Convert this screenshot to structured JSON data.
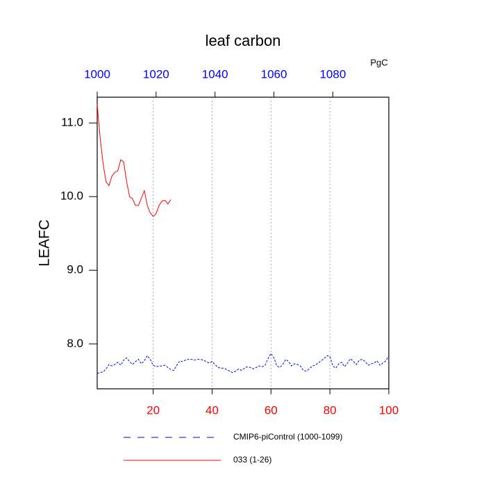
{
  "chart_data": {
    "type": "line",
    "title": "leaf carbon",
    "y_label": "LEAFC",
    "unit_label": "PgC",
    "xlim": [
      1,
      100
    ],
    "xticks": [
      20,
      40,
      60,
      80,
      100
    ],
    "xtick_color": "#ff0000",
    "x2lim": [
      1000,
      1099
    ],
    "x2ticks": [
      1000,
      1020,
      1040,
      1060,
      1080
    ],
    "x2tick_color": "#0000ff",
    "ylim": [
      7.39,
      11.35
    ],
    "yticks": [
      {
        "value": 8,
        "label": "8.0"
      },
      {
        "value": 9,
        "label": "9.0"
      },
      {
        "value": 10,
        "label": "10.0"
      },
      {
        "value": 11,
        "label": "11.0"
      }
    ],
    "grid": true,
    "series": [
      {
        "name": "CMIP6-piControl (1000-1099)",
        "color": "#0000ff",
        "dash": true,
        "x": [
          1,
          2,
          3,
          4,
          5,
          6,
          7,
          8,
          9,
          10,
          11,
          12,
          13,
          14,
          15,
          16,
          17,
          18,
          19,
          20,
          21,
          22,
          23,
          24,
          25,
          26,
          27,
          28,
          29,
          30,
          31,
          32,
          33,
          34,
          35,
          36,
          37,
          38,
          39,
          40,
          41,
          42,
          43,
          44,
          45,
          46,
          47,
          48,
          49,
          50,
          51,
          52,
          53,
          54,
          55,
          56,
          57,
          58,
          59,
          60,
          61,
          62,
          63,
          64,
          65,
          66,
          67,
          68,
          69,
          70,
          71,
          72,
          73,
          74,
          75,
          76,
          77,
          78,
          79,
          80,
          81,
          82,
          83,
          84,
          85,
          86,
          87,
          88,
          89,
          90,
          91,
          92,
          93,
          94,
          95,
          96,
          97,
          98,
          99,
          100
        ],
        "values": [
          7.6,
          7.61,
          7.62,
          7.66,
          7.72,
          7.7,
          7.72,
          7.75,
          7.71,
          7.78,
          7.81,
          7.76,
          7.72,
          7.76,
          7.79,
          7.73,
          7.77,
          7.84,
          7.79,
          7.71,
          7.69,
          7.7,
          7.7,
          7.71,
          7.68,
          7.65,
          7.64,
          7.71,
          7.77,
          7.76,
          7.78,
          7.79,
          7.79,
          7.78,
          7.79,
          7.79,
          7.78,
          7.76,
          7.74,
          7.76,
          7.72,
          7.68,
          7.67,
          7.67,
          7.65,
          7.63,
          7.61,
          7.63,
          7.66,
          7.64,
          7.67,
          7.69,
          7.68,
          7.66,
          7.68,
          7.7,
          7.69,
          7.71,
          7.8,
          7.87,
          7.81,
          7.7,
          7.68,
          7.72,
          7.79,
          7.76,
          7.7,
          7.73,
          7.72,
          7.7,
          7.64,
          7.63,
          7.66,
          7.7,
          7.71,
          7.74,
          7.77,
          7.8,
          7.84,
          7.83,
          7.7,
          7.67,
          7.73,
          7.75,
          7.69,
          7.74,
          7.8,
          7.76,
          7.72,
          7.78,
          7.79,
          7.76,
          7.71,
          7.73,
          7.74,
          7.77,
          7.71,
          7.74,
          7.77,
          7.84
        ]
      },
      {
        "name": "033 (1-26)",
        "color": "#ff0000",
        "dash": false,
        "x": [
          1,
          2,
          3,
          4,
          5,
          6,
          7,
          8,
          9,
          10,
          11,
          12,
          13,
          14,
          15,
          16,
          17,
          18,
          19,
          20,
          21,
          22,
          23,
          24,
          25,
          26
        ],
        "values": [
          11.25,
          10.8,
          10.45,
          10.2,
          10.15,
          10.28,
          10.33,
          10.35,
          10.5,
          10.47,
          10.2,
          10.0,
          9.97,
          9.88,
          9.88,
          9.98,
          10.08,
          9.88,
          9.78,
          9.73,
          9.77,
          9.88,
          9.94,
          9.95,
          9.9,
          9.96
        ]
      }
    ]
  }
}
